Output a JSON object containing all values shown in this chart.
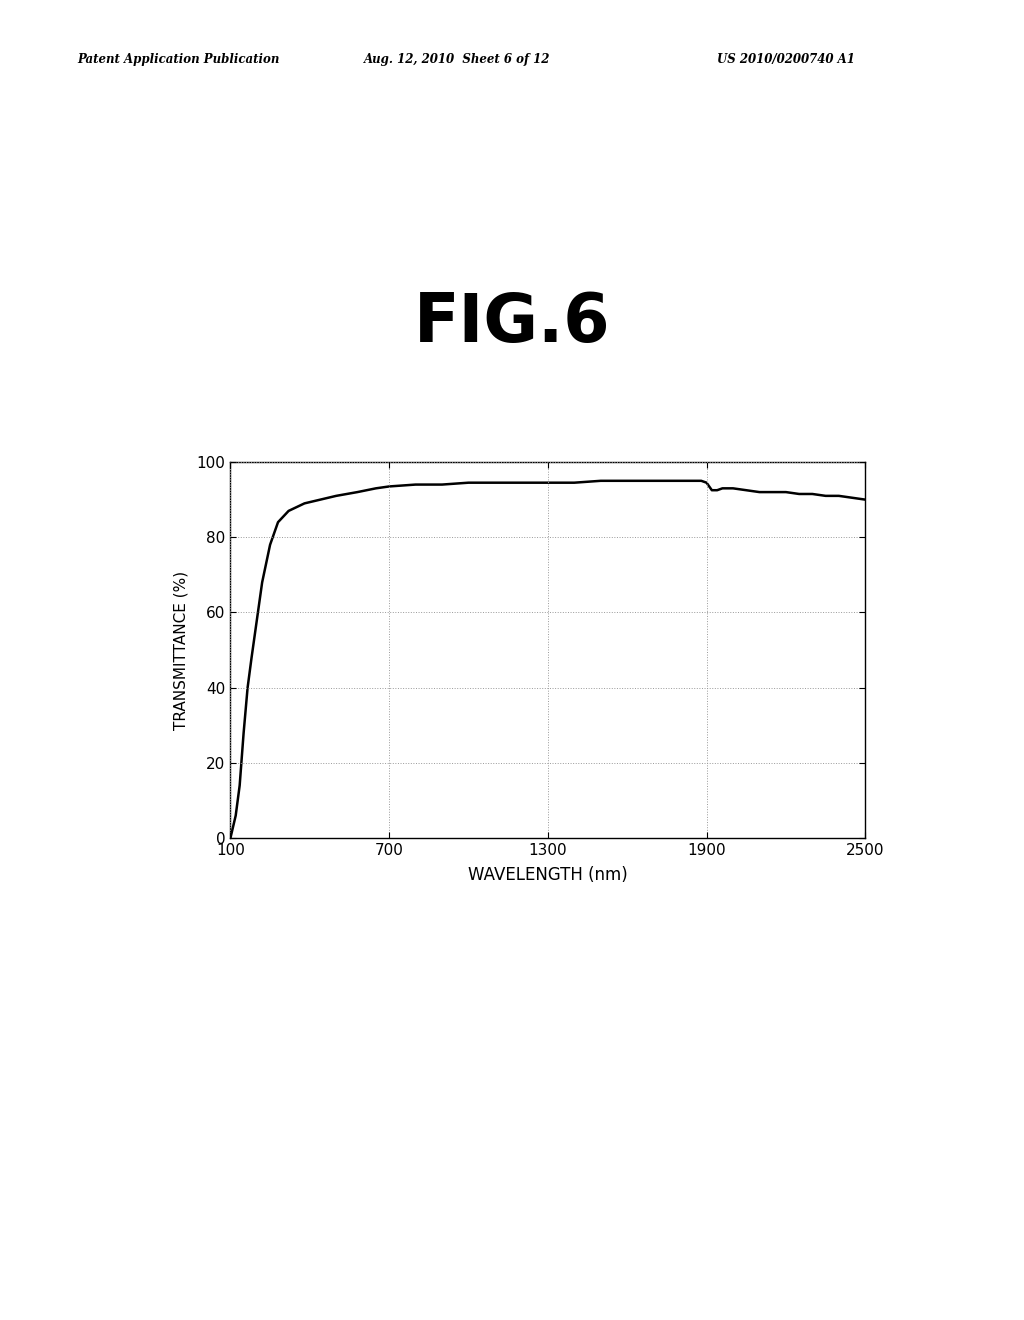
{
  "title": "FIG.6",
  "xlabel": "WAVELENGTH (nm)",
  "ylabel": "TRANSMITTANCE (%)",
  "header_left": "Patent Application Publication",
  "header_center": "Aug. 12, 2010  Sheet 6 of 12",
  "header_right": "US 2010/0200740 A1",
  "xlim": [
    100,
    2500
  ],
  "ylim": [
    0,
    100
  ],
  "xticks": [
    100,
    700,
    1300,
    1900,
    2500
  ],
  "yticks": [
    0,
    20,
    40,
    60,
    80,
    100
  ],
  "background_color": "#ffffff",
  "line_color": "#000000",
  "grid_color": "#999999",
  "curve_x": [
    100,
    120,
    135,
    150,
    165,
    180,
    200,
    220,
    250,
    280,
    320,
    380,
    440,
    500,
    580,
    650,
    700,
    800,
    900,
    1000,
    1100,
    1200,
    1300,
    1400,
    1500,
    1600,
    1700,
    1800,
    1850,
    1880,
    1900,
    1910,
    1920,
    1940,
    1960,
    1980,
    2000,
    2050,
    2100,
    2150,
    2200,
    2250,
    2300,
    2350,
    2400,
    2450,
    2500
  ],
  "curve_y": [
    0,
    6,
    14,
    28,
    40,
    48,
    58,
    68,
    78,
    84,
    87,
    89,
    90,
    91,
    92,
    93,
    93.5,
    94,
    94,
    94.5,
    94.5,
    94.5,
    94.5,
    94.5,
    95,
    95,
    95,
    95,
    95,
    95,
    94.5,
    93.5,
    92.5,
    92.5,
    93,
    93,
    93,
    92.5,
    92,
    92,
    92,
    91.5,
    91.5,
    91,
    91,
    90.5,
    90
  ]
}
